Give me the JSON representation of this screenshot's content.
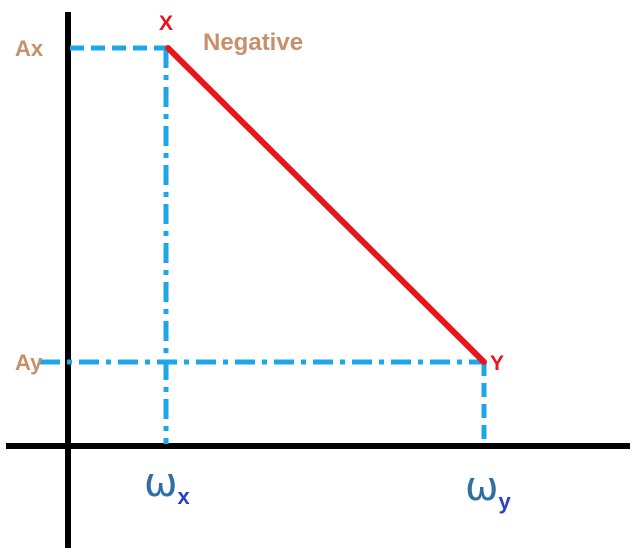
{
  "labels": {
    "ax": "Ax",
    "ay": "Ay",
    "point_x": "X",
    "point_y": "Y",
    "slope_note": "Negative",
    "omega_x_symbol": "ω",
    "omega_x_subscript": "x",
    "omega_y_symbol": "ω",
    "omega_y_subscript": "y"
  },
  "colors": {
    "axis": "#000000",
    "guide": "#1ca7e8",
    "segment": "#e8161b",
    "amplitude_label": "#c8906a",
    "point_label": "#e8161b",
    "omega_symbol": "#2f6fa8",
    "omega_subscript": "#2c40c8"
  }
}
